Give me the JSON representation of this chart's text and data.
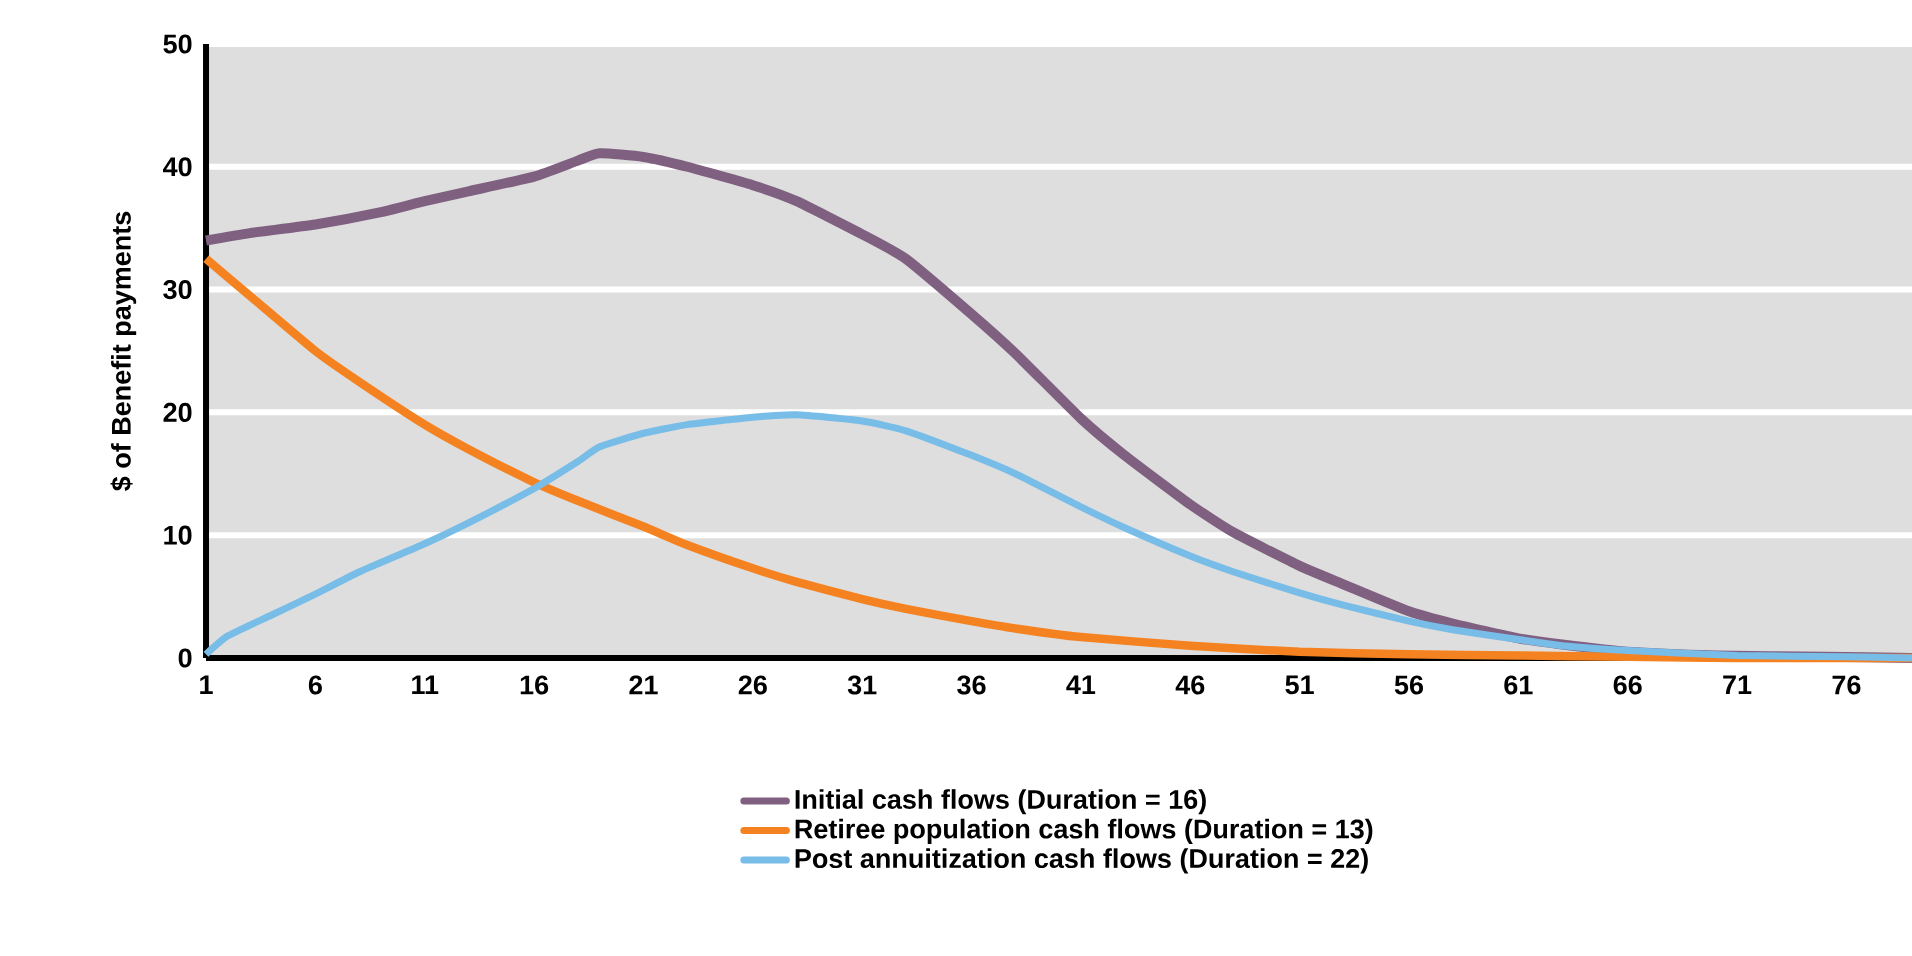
{
  "chart_data": {
    "type": "line",
    "ylabel": "$ of Benefit payments",
    "xlim": [
      1,
      79
    ],
    "ylim": [
      0,
      50
    ],
    "xticks": [
      1,
      6,
      11,
      16,
      21,
      26,
      31,
      36,
      41,
      46,
      51,
      56,
      61,
      66,
      71,
      76
    ],
    "yticks": [
      0,
      10,
      20,
      30,
      40,
      50
    ],
    "grid": "y",
    "legend": "bottom",
    "marker": "none",
    "line_style": "solid",
    "series": [
      {
        "name": "Initial cash flows (Duration = 16)",
        "color": "#806080",
        "x": [
          1,
          3,
          6,
          9,
          11,
          13,
          16,
          18,
          19,
          21,
          23,
          26,
          28,
          31,
          33,
          36,
          38,
          41,
          43,
          46,
          48,
          51,
          53,
          56,
          58,
          61,
          63,
          66,
          70,
          75,
          79
        ],
        "values": [
          34,
          34.6,
          35.3,
          36.3,
          37.2,
          38,
          39.2,
          40.5,
          41.1,
          40.8,
          40,
          38.5,
          37.2,
          34.5,
          32.5,
          28,
          24.8,
          19.5,
          16.5,
          12.5,
          10.2,
          7.5,
          6,
          3.8,
          2.8,
          1.6,
          1.1,
          0.5,
          0.2,
          0.1,
          0
        ]
      },
      {
        "name": "Retiree population cash flows (Duration = 13)",
        "color": "#f58220",
        "x": [
          1,
          3,
          6,
          8,
          11,
          13,
          16,
          18,
          21,
          23,
          26,
          28,
          31,
          33,
          36,
          38,
          41,
          46,
          51,
          56,
          61,
          66,
          71,
          79
        ],
        "values": [
          32.5,
          29.5,
          25,
          22.5,
          19,
          17,
          14.3,
          12.8,
          10.7,
          9.2,
          7.3,
          6.2,
          4.8,
          4,
          3,
          2.4,
          1.7,
          1,
          0.5,
          0.3,
          0.2,
          0.1,
          0,
          0
        ]
      },
      {
        "name": "Post annuitization cash flows (Duration = 22)",
        "color": "#78bce8",
        "x": [
          1,
          2,
          4,
          6,
          8,
          11,
          13,
          16,
          18,
          19,
          21,
          23,
          26,
          28,
          31,
          33,
          36,
          38,
          41,
          43,
          46,
          48,
          51,
          53,
          56,
          58,
          61,
          63,
          66,
          71,
          76,
          79
        ],
        "values": [
          0.3,
          1.8,
          3.5,
          5.2,
          7,
          9.3,
          11,
          13.8,
          16,
          17.2,
          18.3,
          19,
          19.6,
          19.8,
          19.3,
          18.5,
          16.5,
          15,
          12.3,
          10.6,
          8.3,
          7,
          5.3,
          4.3,
          3,
          2.3,
          1.5,
          1,
          0.6,
          0.2,
          0.1,
          0
        ]
      }
    ]
  }
}
